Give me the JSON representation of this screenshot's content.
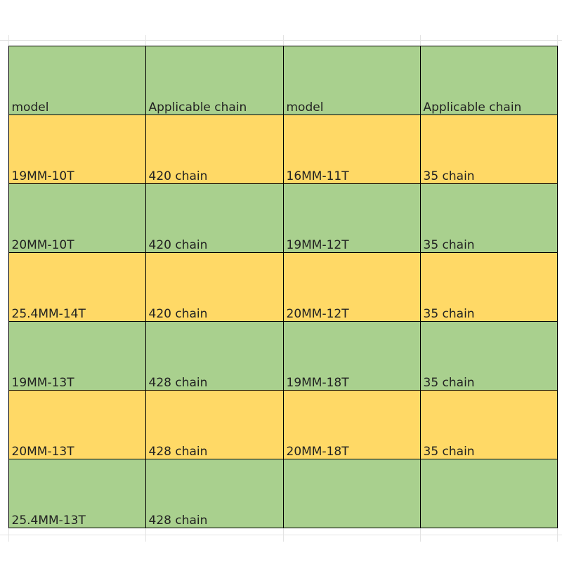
{
  "table": {
    "header": [
      "model",
      "Applicable chain",
      "model",
      "Applicable chain"
    ],
    "rows": [
      [
        "19MM-10T",
        "420 chain",
        "16MM-11T",
        "35 chain"
      ],
      [
        "20MM-10T",
        "420 chain",
        "19MM-12T",
        "35 chain"
      ],
      [
        "25.4MM-14T",
        "420 chain",
        "20MM-12T",
        "35 chain"
      ],
      [
        "19MM-13T",
        "428 chain",
        "19MM-18T",
        "35 chain"
      ],
      [
        "20MM-13T",
        "428 chain",
        "20MM-18T",
        "35 chain"
      ],
      [
        "25.4MM-13T",
        "428 chain"
      ]
    ]
  }
}
